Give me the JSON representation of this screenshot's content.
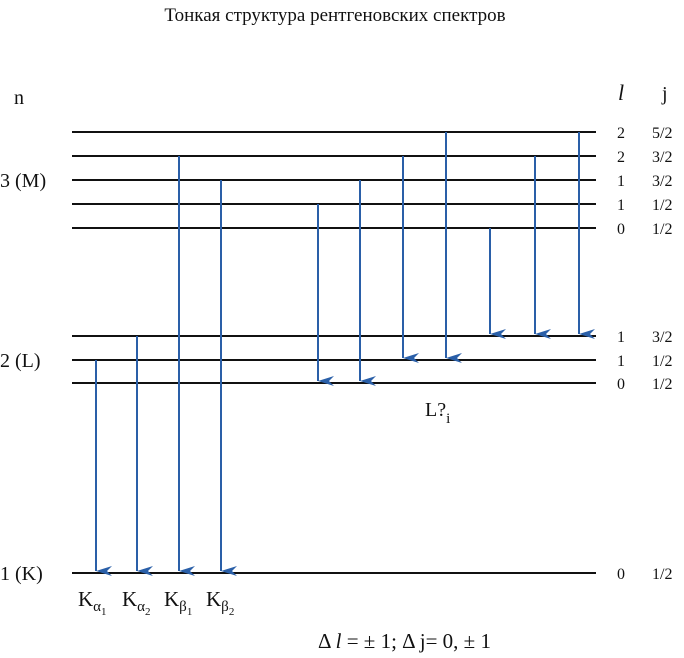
{
  "title": "Тонкая структура рентгеновских спектров",
  "headers": {
    "n": "n",
    "l": "l",
    "j": "j"
  },
  "levels": [
    {
      "l": "2",
      "j": "5/2"
    },
    {
      "l": "2",
      "j": "3/2"
    },
    {
      "n": "3 (M)",
      "l": "1",
      "j": "3/2"
    },
    {
      "l": "1",
      "j": "1/2"
    },
    {
      "l": "0",
      "j": "1/2"
    },
    {
      "l": "1",
      "j": "3/2"
    },
    {
      "n": "2 (L)",
      "l": "1",
      "j": "1/2"
    },
    {
      "l": "0",
      "j": "1/2"
    },
    {
      "n": "1 (K)",
      "l": "0",
      "j": "1/2"
    }
  ],
  "k_lines": [
    {
      "base": "K",
      "sub": "α",
      "index": "1"
    },
    {
      "base": "K",
      "sub": "α",
      "index": "2"
    },
    {
      "base": "K",
      "sub": "β",
      "index": "1"
    },
    {
      "base": "K",
      "sub": "β",
      "index": "2"
    }
  ],
  "l_label": {
    "base": "L?",
    "sub": "i"
  },
  "rule": {
    "prefix": "Δ ",
    "italic": "l",
    "rest": " = ± 1; Δ j= 0, ± 1"
  }
}
